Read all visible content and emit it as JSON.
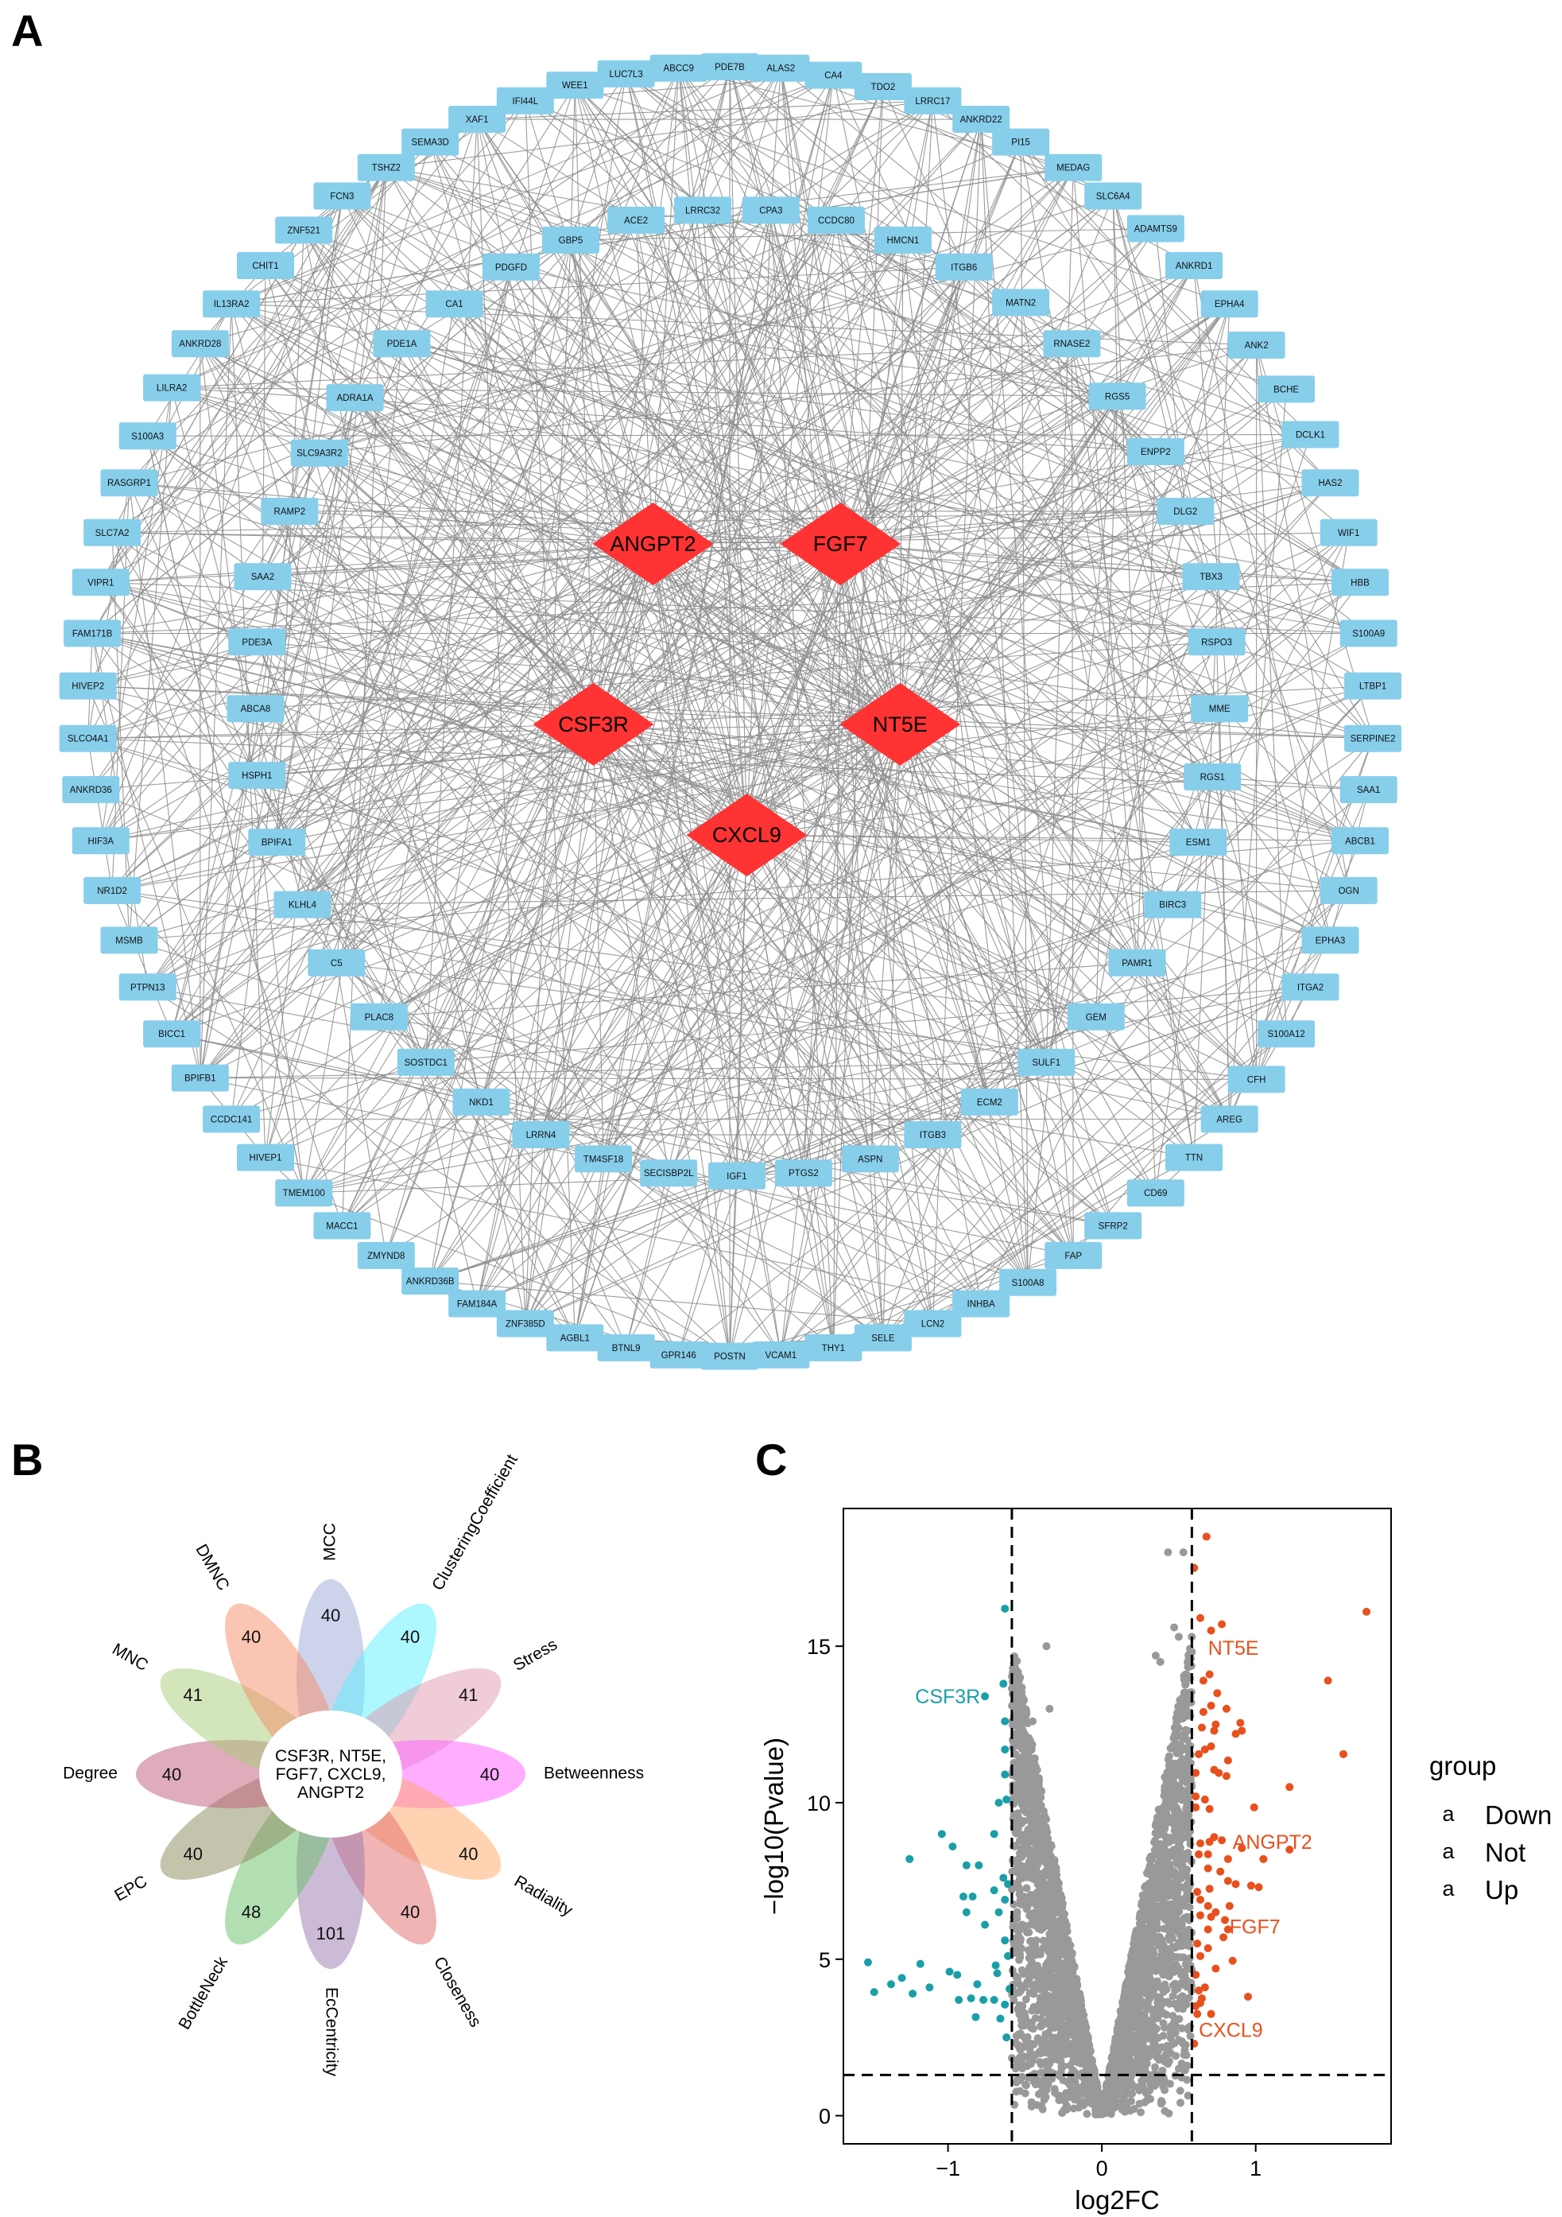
{
  "panels": {
    "a": "A",
    "b": "B",
    "c": "C"
  },
  "network": {
    "hub_color": "#ff3333",
    "node_color": "#87ceeb",
    "edge_color": "#8c8c8c",
    "hubs": [
      "ANGPT2",
      "FGF7",
      "CSF3R",
      "NT5E",
      "CXCL9"
    ],
    "nodes": [
      "PDE7B",
      "ABCC9",
      "ALAS2",
      "LUC7L3",
      "CA4",
      "WEE1",
      "TDO2",
      "IFI44L",
      "LRRC17",
      "XAF1",
      "ANKRD22",
      "SEMA3D",
      "PI15",
      "TSHZ2",
      "MEDAG",
      "FCN3",
      "SLC6A4",
      "ZNF521",
      "ADAMTS9",
      "CHIT1",
      "ANKRD1",
      "IL13RA2",
      "EPHA4",
      "ANKRD28",
      "ANK2",
      "LILRA2",
      "BCHE",
      "S100A3",
      "DCLK1",
      "RASGRP1",
      "HAS2",
      "SLC7A2",
      "WIF1",
      "VIPR1",
      "HBB",
      "FAM171B",
      "S100A9",
      "HIVEP2",
      "LTBP1",
      "SLCO4A1",
      "SERPINE2",
      "ANKRD36",
      "SAA1",
      "HIF3A",
      "ABCB1",
      "NR1D2",
      "OGN",
      "MSMB",
      "EPHA3",
      "PTPN13",
      "ITGA2",
      "BICC1",
      "S100A12",
      "BPIFB1",
      "CFH",
      "CCDC141",
      "AREG",
      "HIVEP1",
      "TTN",
      "TMEM100",
      "CD69",
      "MACC1",
      "SFRP2",
      "ZMYND8",
      "FAP",
      "ANKRD36B",
      "S100A8",
      "FAM184A",
      "INHBA",
      "ZNF385D",
      "LCN2",
      "AGBL1",
      "SELE",
      "BTNL9",
      "THY1",
      "GPR146",
      "VCAM1",
      "POSTN",
      "LRRC32",
      "CPA3",
      "ACE2",
      "CCDC80",
      "GBP5",
      "HMCN1",
      "PDGFD",
      "ITGB6",
      "CA1",
      "MATN2",
      "PDE1A",
      "RNASE2",
      "ADRA1A",
      "RGS5",
      "SLC9A3R2",
      "ENPP2",
      "RAMP2",
      "DLG2",
      "SAA2",
      "TBX3",
      "PDE3A",
      "RSPO3",
      "ABCA8",
      "MME",
      "HSPH1",
      "RGS1",
      "BPIFA1",
      "ESM1",
      "KLHL4",
      "BIRC3",
      "C5",
      "PAMR1",
      "PLAC8",
      "GEM",
      "SOSTDC1",
      "SULF1",
      "NKD1",
      "ECM2",
      "LRRN4",
      "ITGB3",
      "TM4SF18",
      "ASPN",
      "SECISBP2L",
      "PTGS2",
      "IGF1"
    ]
  },
  "flower": {
    "center_label_lines": [
      "CSF3R, NT5E,",
      "FGF7, CXCL9,",
      "ANGPT2"
    ],
    "petals": [
      {
        "name": "MCC",
        "value": 40,
        "color": "#9aa8d8"
      },
      {
        "name": "ClusteringCoefficient",
        "value": 40,
        "color": "#5cf0ff"
      },
      {
        "name": "Stress",
        "value": 41,
        "color": "#e09aae"
      },
      {
        "name": "Betweenness",
        "value": 40,
        "color": "#ff5cff"
      },
      {
        "name": "Radiality",
        "value": 40,
        "color": "#ffa866"
      },
      {
        "name": "Closeness",
        "value": 40,
        "color": "#e26a6a"
      },
      {
        "name": "EcCentricity",
        "value": 101,
        "color": "#9a78b0"
      },
      {
        "name": "BottleNeck",
        "value": 48,
        "color": "#66c066"
      },
      {
        "name": "EPC",
        "value": 40,
        "color": "#8a8a5c"
      },
      {
        "name": "Degree",
        "value": 40,
        "color": "#c05a7a"
      },
      {
        "name": "MNC",
        "value": 41,
        "color": "#a8cc78"
      },
      {
        "name": "DMNC",
        "value": 40,
        "color": "#f58c66"
      }
    ]
  },
  "chart_data": {
    "type": "scatter",
    "title": "",
    "xlabel": "log2FC",
    "ylabel": "-log10(Pvalue)",
    "xlim": [
      -1.68,
      1.88
    ],
    "ylim": [
      -0.9,
      19.4
    ],
    "xticks": [
      -1,
      0,
      1
    ],
    "yticks": [
      0,
      5,
      10,
      15
    ],
    "grid": false,
    "thresholds": {
      "log2FC": [
        -0.585,
        0.585
      ],
      "neg_log10_p": 1.3
    },
    "legend": {
      "title": "group",
      "position": "right",
      "key_glyph": "a"
    },
    "series": [
      {
        "name": "Down",
        "color": "#1a9fa8",
        "points": [
          [
            -0.63,
            16.2
          ],
          [
            -0.64,
            13.8
          ],
          [
            -0.76,
            13.4
          ],
          [
            -0.63,
            12.6
          ],
          [
            -0.63,
            11.7
          ],
          [
            -0.63,
            10.9
          ],
          [
            -0.67,
            10.0
          ],
          [
            -0.62,
            10.1
          ],
          [
            -1.04,
            9.0
          ],
          [
            -0.97,
            8.6
          ],
          [
            -1.25,
            8.2
          ],
          [
            -0.88,
            8.0
          ],
          [
            -0.8,
            8.0
          ],
          [
            -0.7,
            9.0
          ],
          [
            -0.64,
            7.6
          ],
          [
            -0.61,
            7.4
          ],
          [
            -0.7,
            7.2
          ],
          [
            -0.84,
            7.0
          ],
          [
            -0.9,
            7.0
          ],
          [
            -0.63,
            6.9
          ],
          [
            -0.67,
            6.5
          ],
          [
            -0.88,
            6.5
          ],
          [
            -0.76,
            6.1
          ],
          [
            -0.63,
            5.6
          ],
          [
            -0.61,
            5.1
          ],
          [
            -1.52,
            4.9
          ],
          [
            -1.18,
            4.85
          ],
          [
            -0.69,
            4.8
          ],
          [
            -0.99,
            4.6
          ],
          [
            -0.94,
            4.5
          ],
          [
            -0.68,
            4.55
          ],
          [
            -1.3,
            4.4
          ],
          [
            -1.37,
            4.2
          ],
          [
            -1.48,
            3.95
          ],
          [
            -1.23,
            3.9
          ],
          [
            -1.12,
            4.1
          ],
          [
            -0.81,
            4.2
          ],
          [
            -0.93,
            3.7
          ],
          [
            -0.85,
            3.75
          ],
          [
            -0.77,
            3.7
          ],
          [
            -0.7,
            3.7
          ],
          [
            -0.63,
            3.55
          ],
          [
            -0.6,
            4.05
          ],
          [
            -0.82,
            3.15
          ],
          [
            -0.66,
            3.1
          ],
          [
            -0.62,
            2.5
          ]
        ]
      },
      {
        "name": "Not",
        "color": "#999999",
        "points": [
          [
            0.43,
            18.0
          ],
          [
            0.53,
            18.0
          ],
          [
            -0.36,
            15.0
          ],
          [
            0.5,
            15.3
          ],
          [
            0.47,
            15.6
          ],
          [
            0.35,
            14.7
          ],
          [
            0.38,
            14.5
          ],
          [
            -0.34,
            13.0
          ],
          [
            -0.57,
            12.7
          ],
          [
            -0.45,
            12.6
          ]
        ]
      },
      {
        "name": "Up",
        "color": "#e8501e",
        "points": [
          [
            0.68,
            18.5
          ],
          [
            0.6,
            17.5
          ],
          [
            1.72,
            16.1
          ],
          [
            0.64,
            15.9
          ],
          [
            0.78,
            15.7
          ],
          [
            0.71,
            15.5
          ],
          [
            1.47,
            13.9
          ],
          [
            0.7,
            14.1
          ],
          [
            0.66,
            13.9
          ],
          [
            0.75,
            13.5
          ],
          [
            0.71,
            13.1
          ],
          [
            0.81,
            13.0
          ],
          [
            0.66,
            12.9
          ],
          [
            0.9,
            12.55
          ],
          [
            0.87,
            12.2
          ],
          [
            0.91,
            12.3
          ],
          [
            0.74,
            12.5
          ],
          [
            0.65,
            12.4
          ],
          [
            0.73,
            12.3
          ],
          [
            0.71,
            11.8
          ],
          [
            0.63,
            11.55
          ],
          [
            0.67,
            11.7
          ],
          [
            1.57,
            11.55
          ],
          [
            0.82,
            11.35
          ],
          [
            0.73,
            11.05
          ],
          [
            0.76,
            10.95
          ],
          [
            0.81,
            10.85
          ],
          [
            0.61,
            10.95
          ],
          [
            1.22,
            10.5
          ],
          [
            0.99,
            9.85
          ],
          [
            0.61,
            10.2
          ],
          [
            0.67,
            10.1
          ],
          [
            0.7,
            9.8
          ],
          [
            0.61,
            9.85
          ],
          [
            0.73,
            8.9
          ],
          [
            0.78,
            8.8
          ],
          [
            0.7,
            8.75
          ],
          [
            0.64,
            8.7
          ],
          [
            0.91,
            8.55
          ],
          [
            1.22,
            8.5
          ],
          [
            1.05,
            8.2
          ],
          [
            0.82,
            8.2
          ],
          [
            0.69,
            8.35
          ],
          [
            0.63,
            8.35
          ],
          [
            0.69,
            7.9
          ],
          [
            0.77,
            7.8
          ],
          [
            0.82,
            7.5
          ],
          [
            0.87,
            7.4
          ],
          [
            0.97,
            7.35
          ],
          [
            1.02,
            7.3
          ],
          [
            0.7,
            7.25
          ],
          [
            0.62,
            7.15
          ],
          [
            0.64,
            6.9
          ],
          [
            0.69,
            6.7
          ],
          [
            0.83,
            6.7
          ],
          [
            0.64,
            6.4
          ],
          [
            0.74,
            6.5
          ],
          [
            0.71,
            6.35
          ],
          [
            0.8,
            6.25
          ],
          [
            0.69,
            5.95
          ],
          [
            0.82,
            5.95
          ],
          [
            0.79,
            5.7
          ],
          [
            0.62,
            5.5
          ],
          [
            0.69,
            5.35
          ],
          [
            0.64,
            5.1
          ],
          [
            0.85,
            4.95
          ],
          [
            0.74,
            4.7
          ],
          [
            0.61,
            4.5
          ],
          [
            0.67,
            4.1
          ],
          [
            0.63,
            4.0
          ],
          [
            0.95,
            3.8
          ],
          [
            0.65,
            3.75
          ],
          [
            0.61,
            3.5
          ],
          [
            0.64,
            3.6
          ],
          [
            0.71,
            3.25
          ],
          [
            0.62,
            3.25
          ],
          [
            0.6,
            2.3
          ]
        ]
      }
    ],
    "annotations": [
      {
        "text": "CSF3R",
        "x": -0.79,
        "y": 13.4,
        "color": "#1a9fa8",
        "anchor": "end"
      },
      {
        "text": "NT5E",
        "x": 0.69,
        "y": 14.95,
        "color": "#e8501e",
        "anchor": "start"
      },
      {
        "text": "ANGPT2",
        "x": 0.85,
        "y": 8.75,
        "color": "#e8501e",
        "anchor": "start"
      },
      {
        "text": "FGF7",
        "x": 0.83,
        "y": 6.05,
        "color": "#e8501e",
        "anchor": "start"
      },
      {
        "text": "CXCL9",
        "x": 0.63,
        "y": 2.75,
        "color": "#e8501e",
        "anchor": "start"
      }
    ]
  }
}
